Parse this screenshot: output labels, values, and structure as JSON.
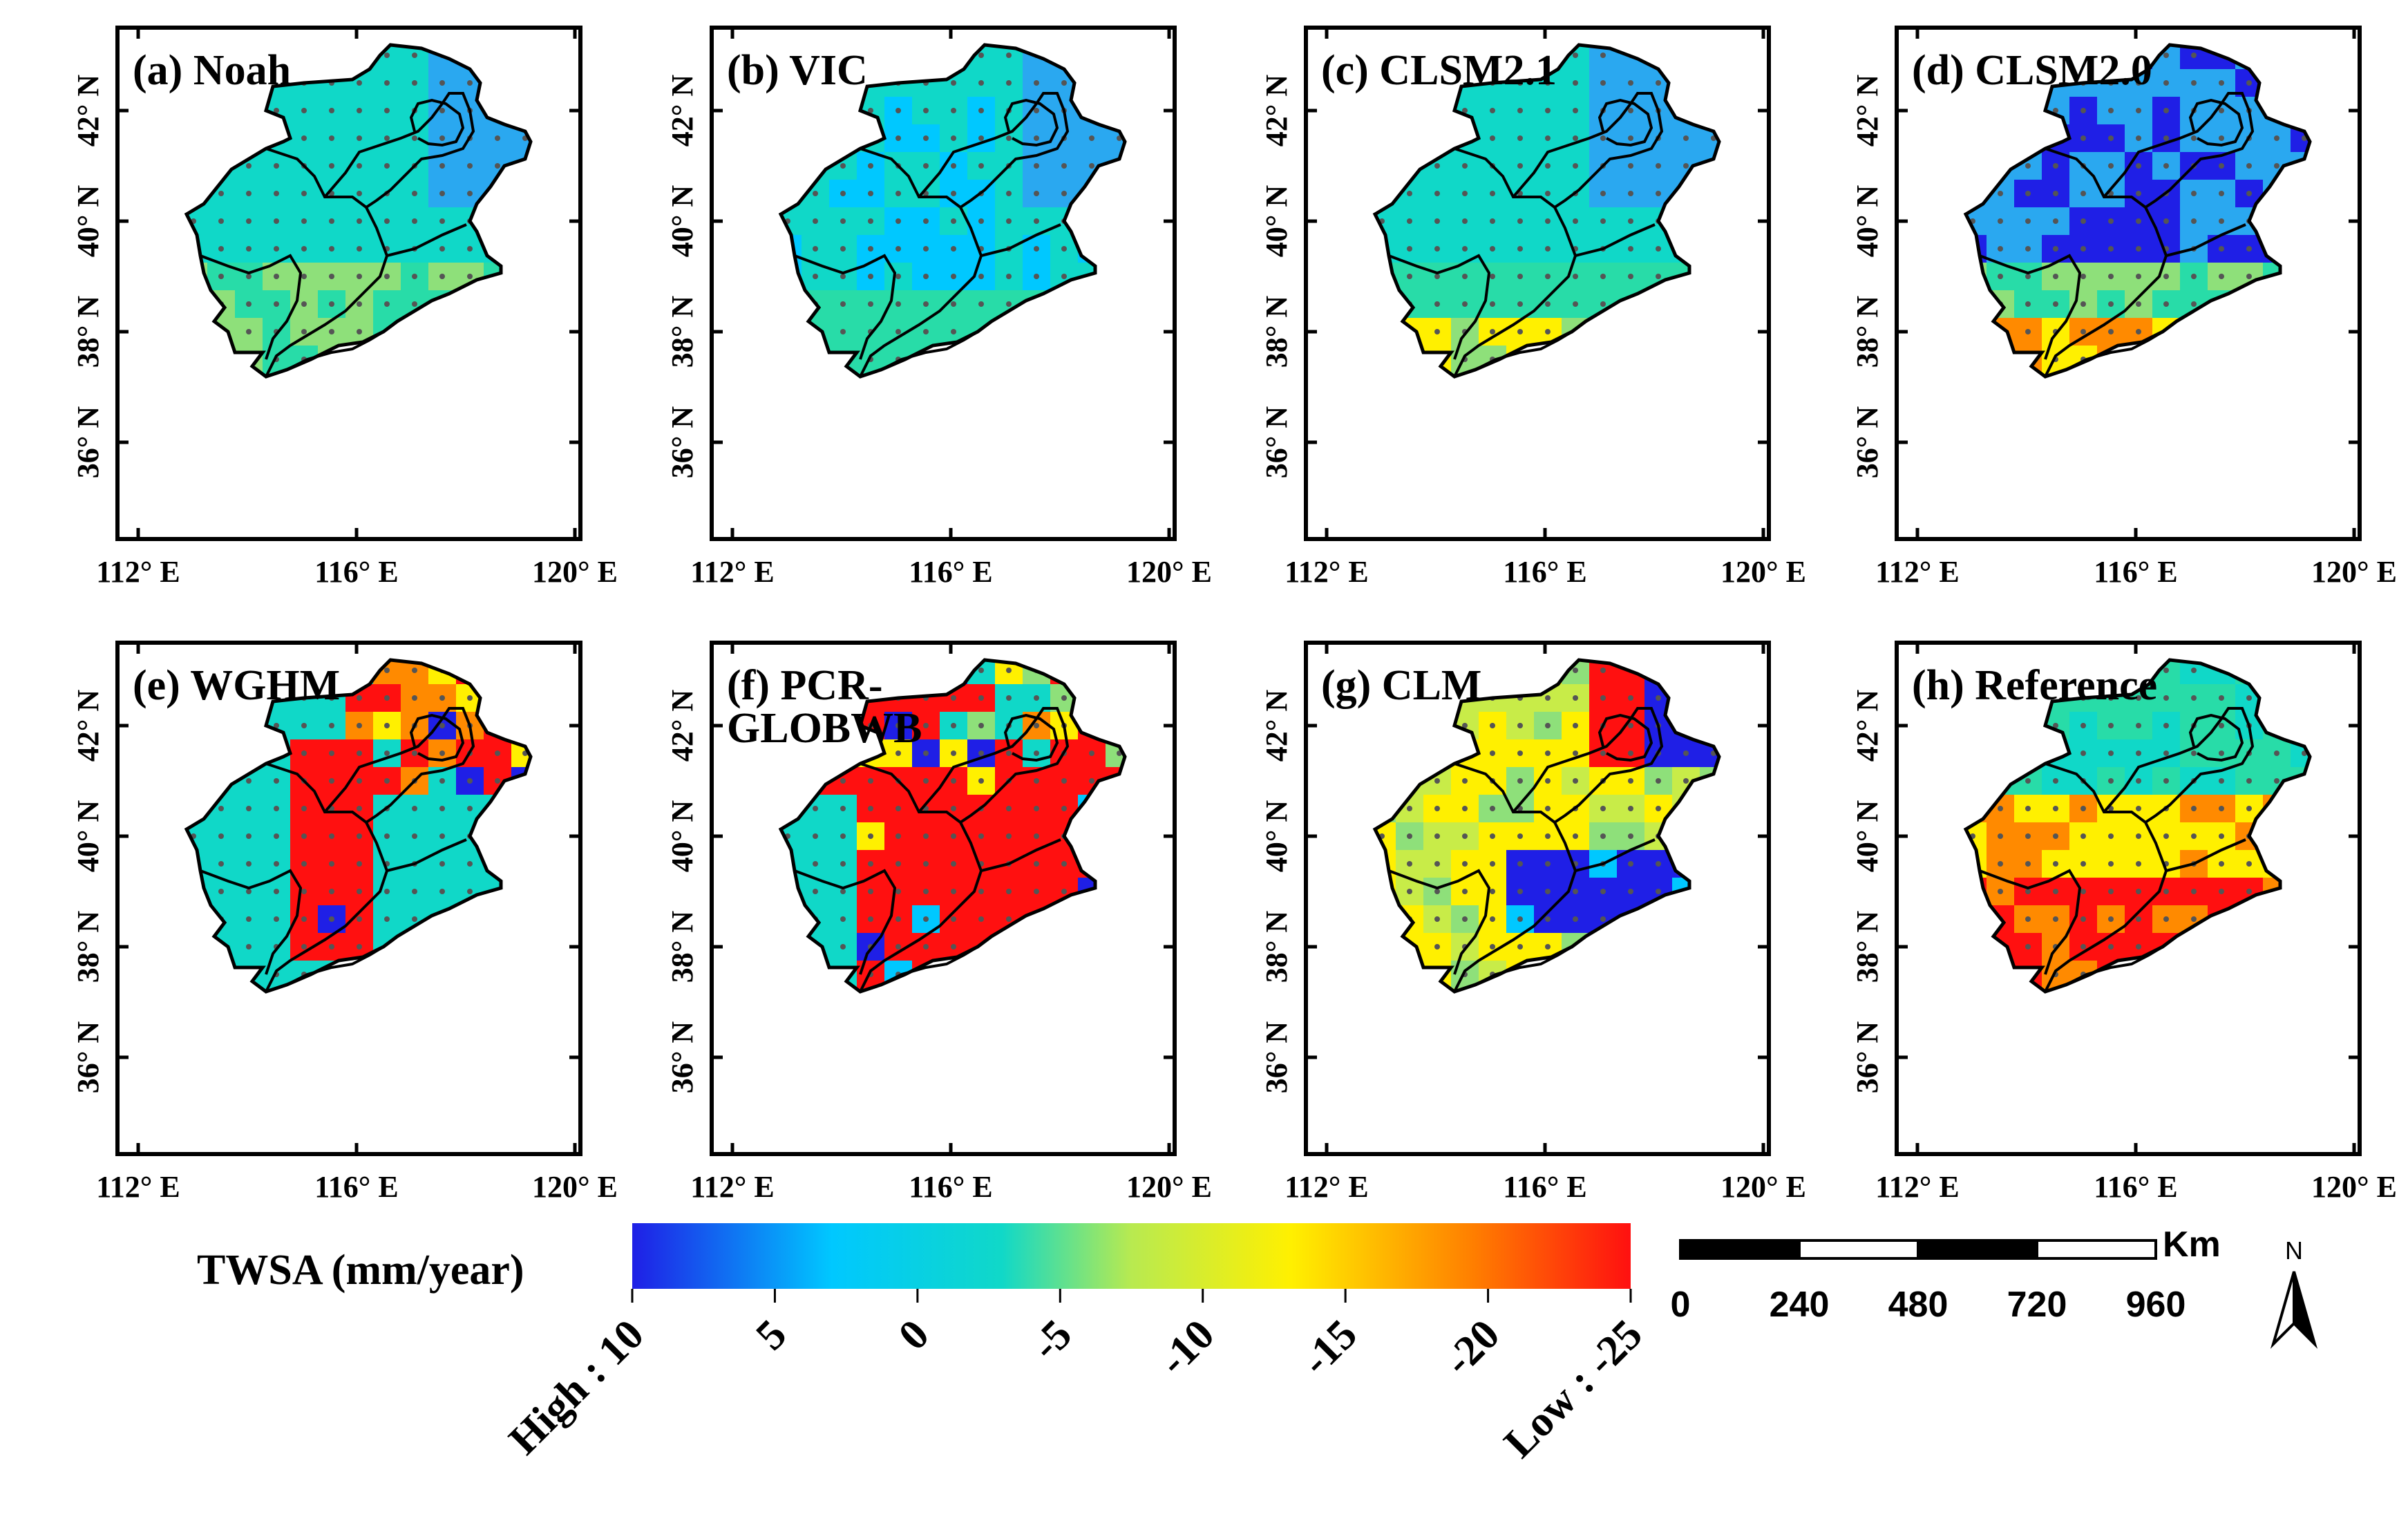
{
  "panels": [
    {
      "id": "a",
      "label": "(a) Noah",
      "scheme": "noah"
    },
    {
      "id": "b",
      "label": "(b) VIC",
      "scheme": "vic"
    },
    {
      "id": "c",
      "label": "(c) CLSM2.1",
      "scheme": "clsm21"
    },
    {
      "id": "d",
      "label": "(d) CLSM2.0",
      "scheme": "clsm20"
    },
    {
      "id": "e",
      "label": "(e) WGHM",
      "scheme": "wghm"
    },
    {
      "id": "f",
      "label": "(f) PCR-GLOBWB",
      "label_lines": [
        "(f) PCR-",
        "GLOBWB"
      ],
      "scheme": "pcr"
    },
    {
      "id": "g",
      "label": "(g) CLM",
      "scheme": "clm"
    },
    {
      "id": "h",
      "label": "(h) Reference",
      "scheme": "ref"
    }
  ],
  "axes": {
    "x_ticks": [
      "112° E",
      "116° E",
      "120° E"
    ],
    "y_ticks": [
      "36° N",
      "38° N",
      "40° N",
      "42° N"
    ]
  },
  "legend": {
    "title": "TWSA (mm/year)",
    "ticks": [
      "High : 10",
      "5",
      "0",
      "-5",
      "-10",
      "-15",
      "-20",
      "Low : -25"
    ],
    "colors": [
      "#1f1fe6",
      "#00c8ff",
      "#10d8c8",
      "#b8ea50",
      "#fff000",
      "#ff8000",
      "#ff1010"
    ]
  },
  "scalebar": {
    "unit": "Km",
    "ticks": [
      "0",
      "240",
      "480",
      "720",
      "960"
    ]
  },
  "north_arrow": {
    "label": "N"
  }
}
